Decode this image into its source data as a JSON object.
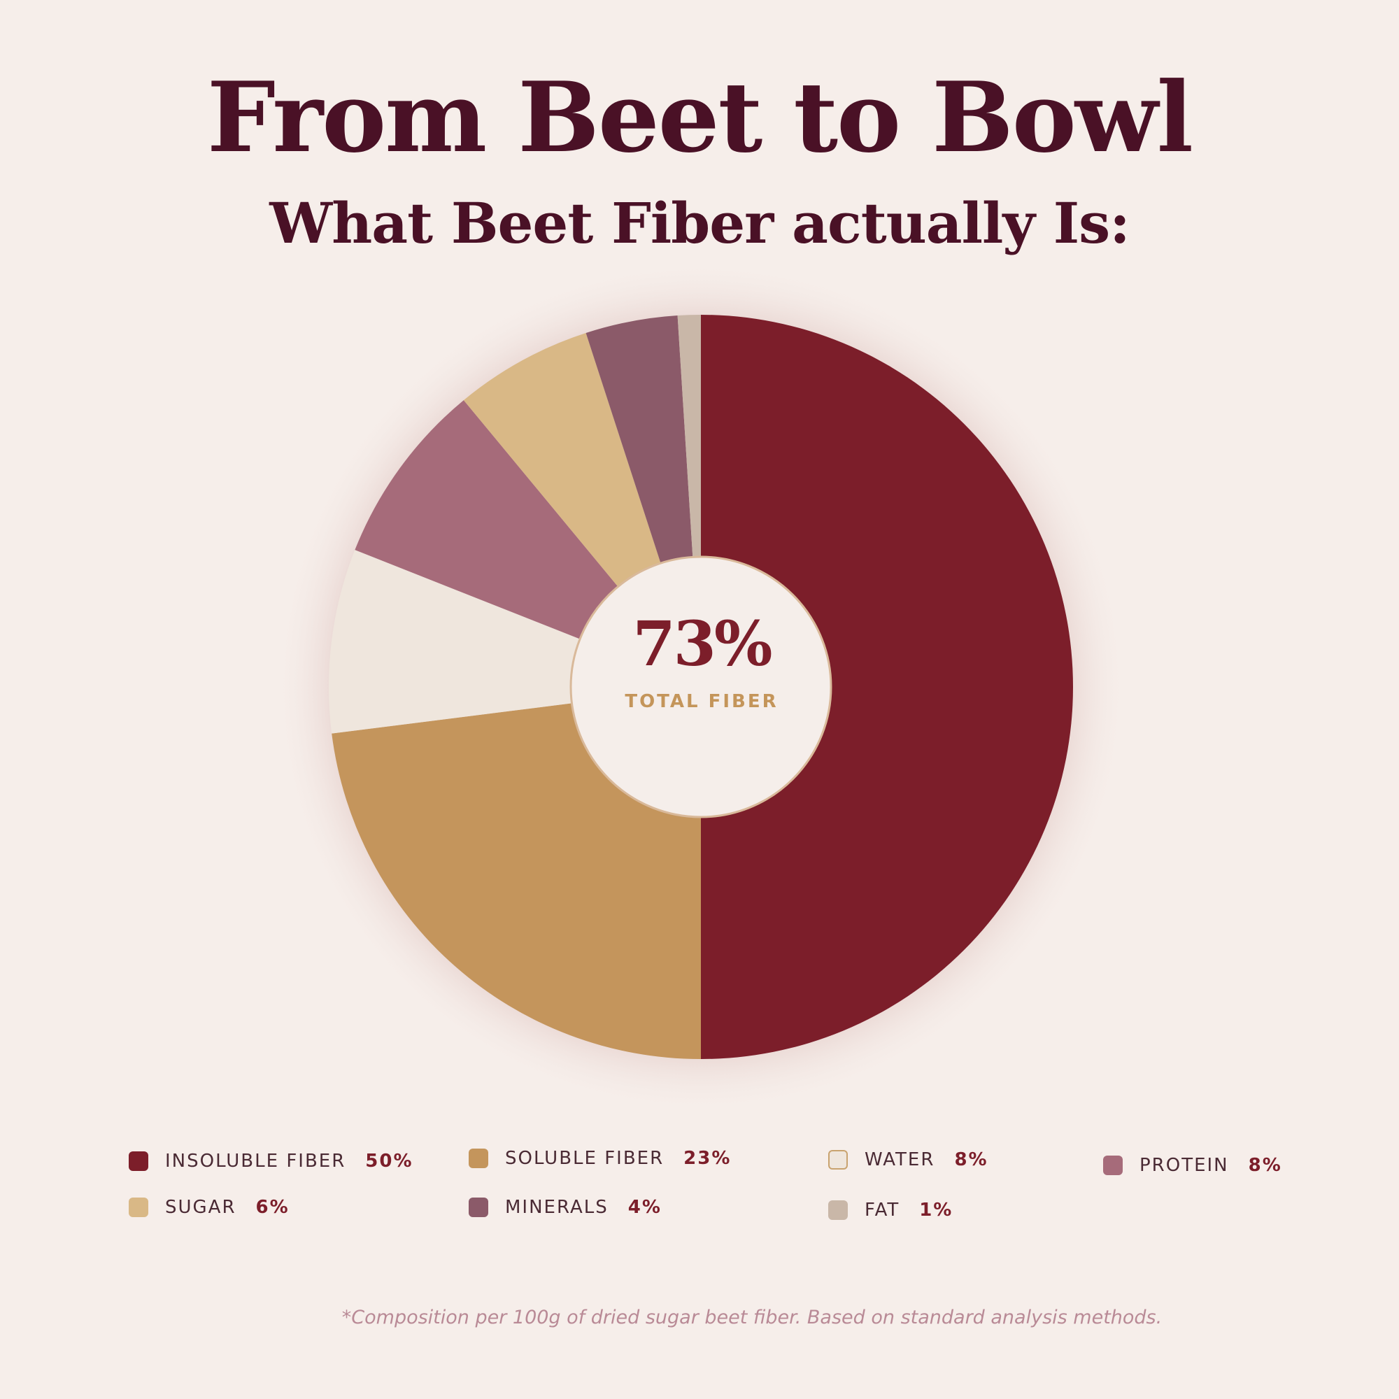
{
  "header": {
    "title": "From Beet to Bowl",
    "subtitle": "What Beet Fiber actually Is:"
  },
  "chart_data": {
    "type": "pie",
    "donut": true,
    "center_value": "73%",
    "center_label": "TOTAL FIBER",
    "slices": [
      {
        "label": "INSOLUBLE FIBER",
        "value": 50,
        "display": "50%",
        "color": "#7c1e2a"
      },
      {
        "label": "SOLUBLE FIBER",
        "value": 23,
        "display": "23%",
        "color": "#c4955c"
      },
      {
        "label": "WATER",
        "value": 8,
        "display": "8%",
        "color": "#efe6dd"
      },
      {
        "label": "PROTEIN",
        "value": 8,
        "display": "8%",
        "color": "#a66b7a"
      },
      {
        "label": "SUGAR",
        "value": 6,
        "display": "6%",
        "color": "#d9b886"
      },
      {
        "label": "MINERALS",
        "value": 4,
        "display": "4%",
        "color": "#8b5a69"
      },
      {
        "label": "FAT",
        "value": 1,
        "display": "1%",
        "color": "#c9b7a8"
      }
    ]
  },
  "legend": {
    "items": [
      {
        "label": "INSOLUBLE FIBER",
        "value": "50%",
        "color": "#7c1e2a"
      },
      {
        "label": "SOLUBLE FIBER",
        "value": "23%",
        "color": "#c4955c"
      },
      {
        "label": "WATER",
        "value": "8%",
        "color": "#efe6dd",
        "outline": "#c9a36f"
      },
      {
        "label": "PROTEIN",
        "value": "8%",
        "color": "#a66b7a"
      },
      {
        "label": "SUGAR",
        "value": "6%",
        "color": "#d9b886"
      },
      {
        "label": "MINERALS",
        "value": "4%",
        "color": "#8b5a69"
      },
      {
        "label": "FAT",
        "value": "1%",
        "color": "#c9b7a8"
      }
    ]
  },
  "footnote": "*Composition per 100g of dried sugar beet fiber. Based on standard analysis methods."
}
